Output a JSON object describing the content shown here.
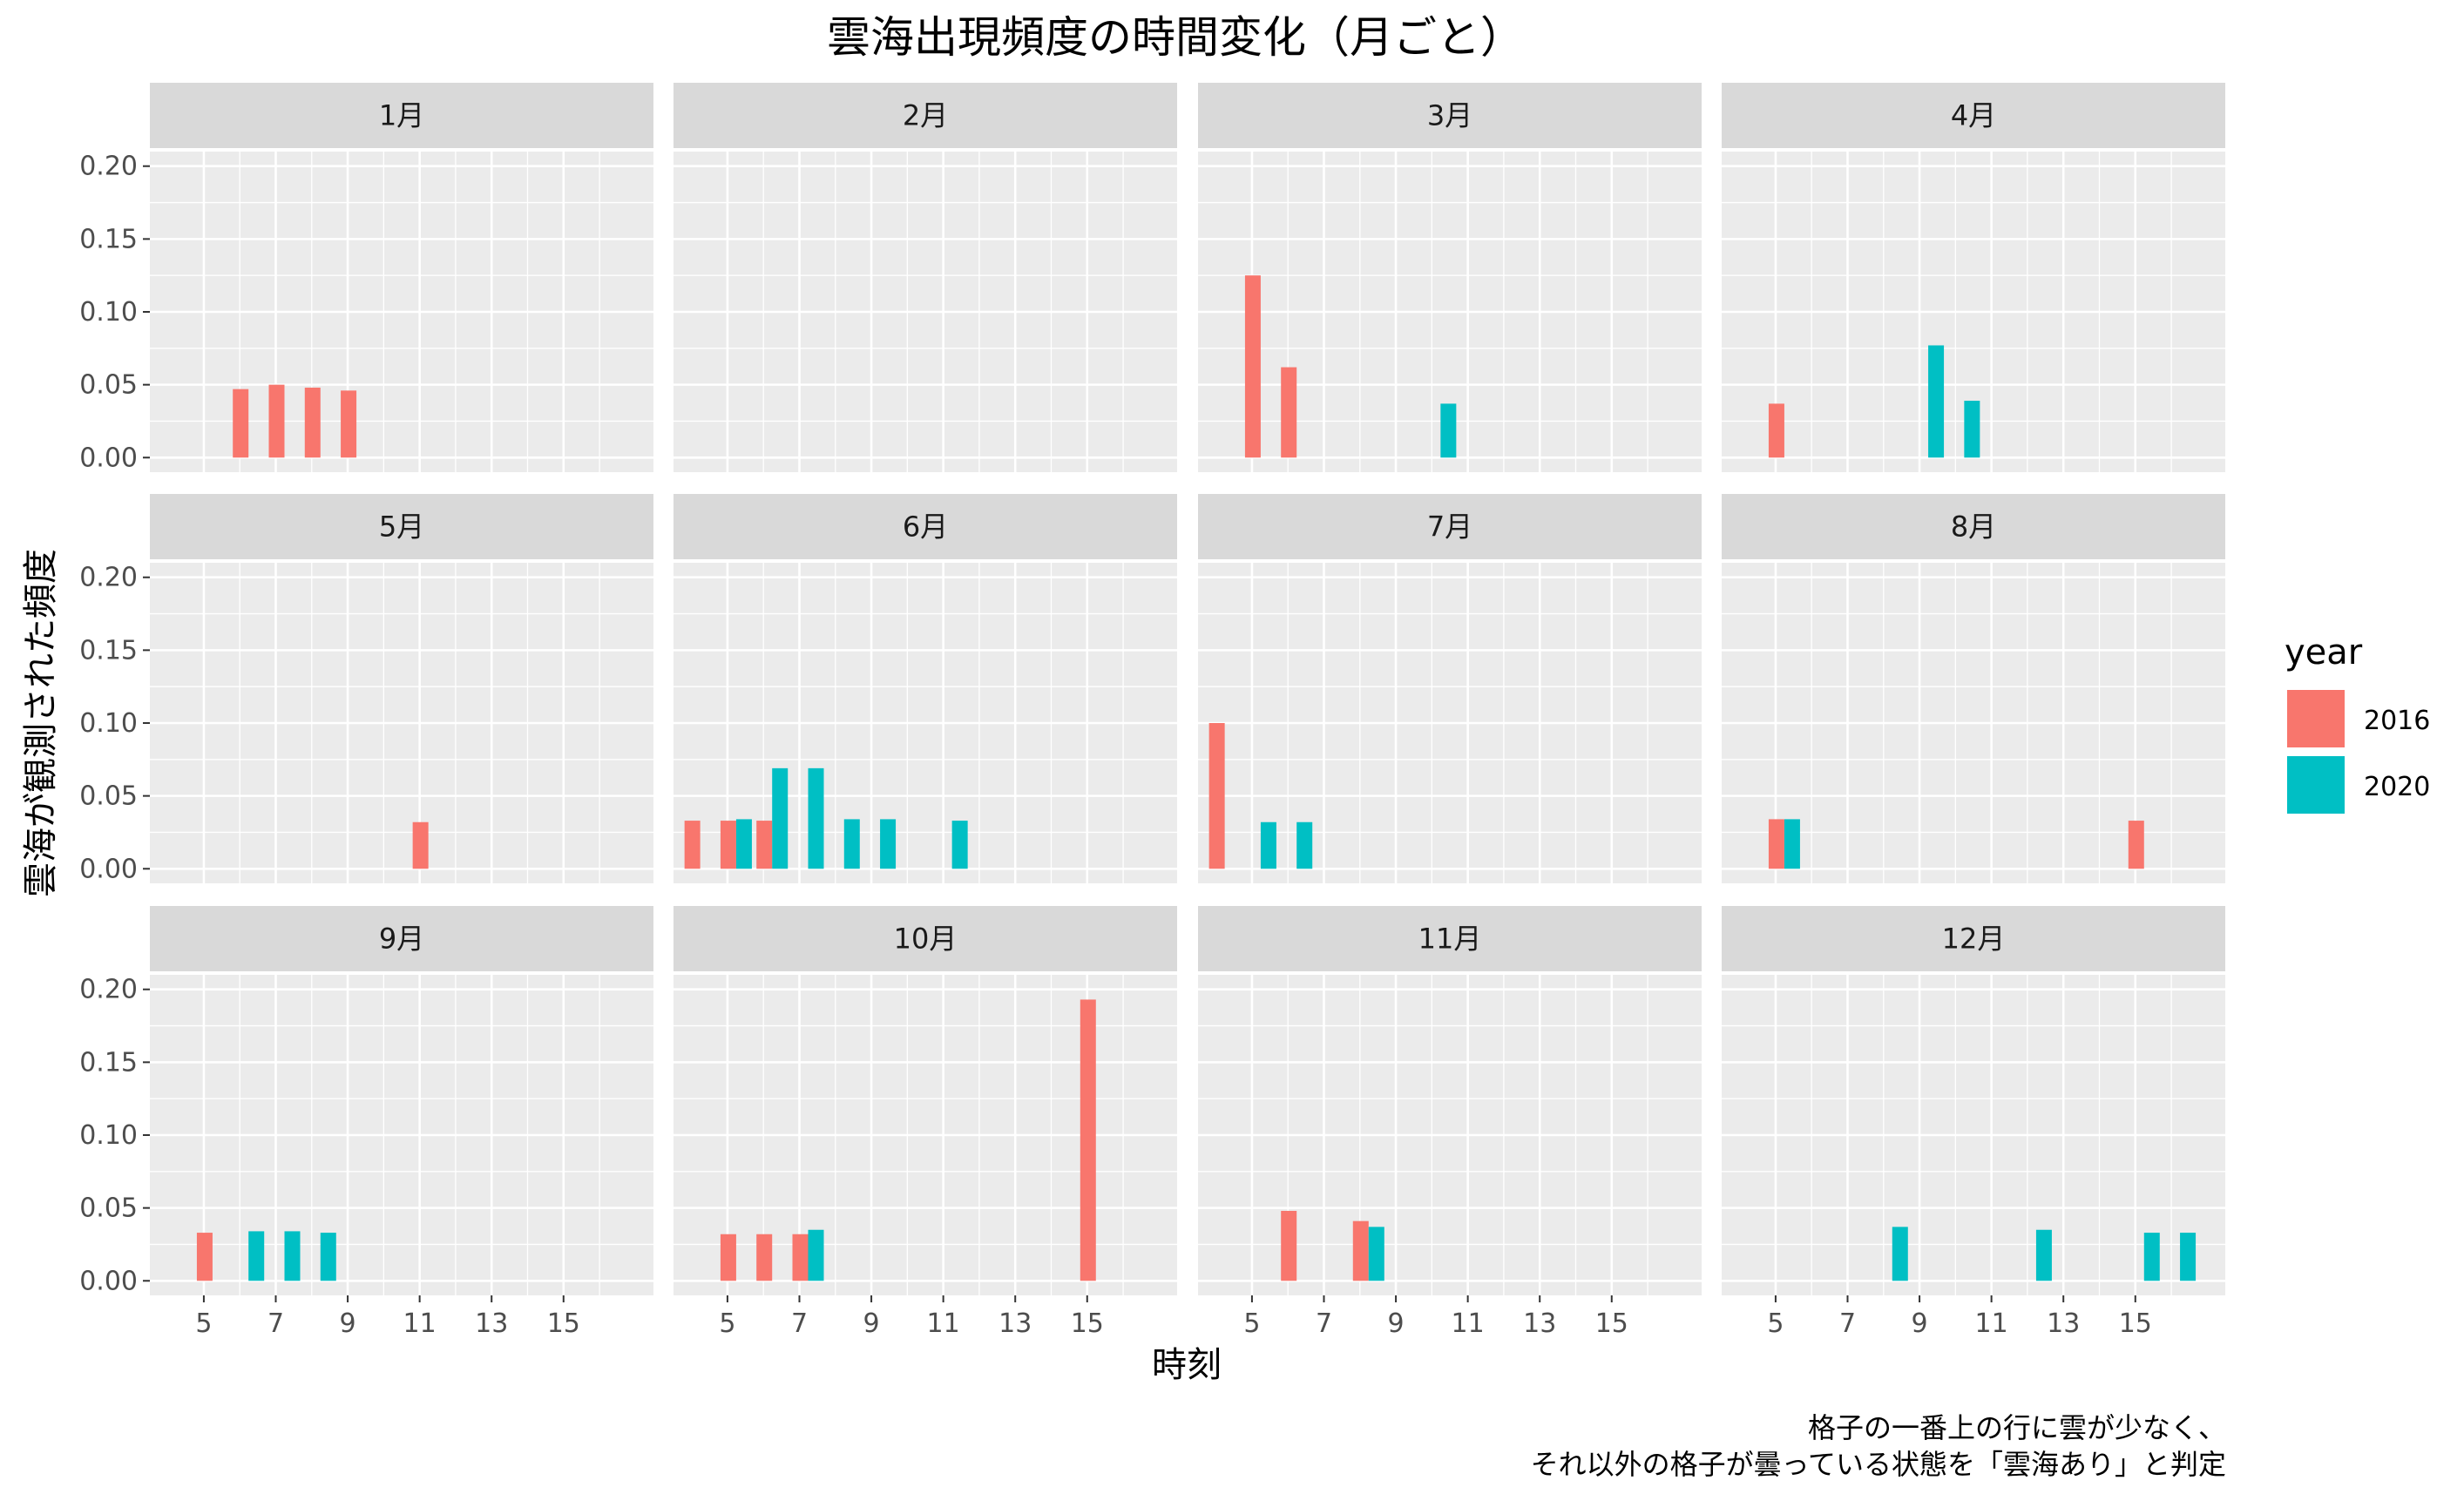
{
  "chart_data": {
    "type": "bar",
    "title": "雲海出現頻度の時間変化（月ごと）",
    "xlabel": "時刻",
    "ylabel": "雲海が観測された頻度",
    "caption": [
      "格子の一番上の行に雲が少なく、",
      "それ以外の格子が曇っている状態を「雲海あり」と判定"
    ],
    "legend": {
      "title": "year",
      "position": "right",
      "entries": [
        {
          "name": "2016",
          "color": "#F8766D"
        },
        {
          "name": "2020",
          "color": "#00BFC4"
        }
      ]
    },
    "xlim": [
      3.5,
      17.5
    ],
    "x_ticks": [
      5,
      7,
      9,
      11,
      13,
      15
    ],
    "ylim": [
      -0.01,
      0.21
    ],
    "y_ticks": [
      0.0,
      0.05,
      0.1,
      0.15,
      0.2
    ],
    "y_tick_labels": [
      "0.00",
      "0.05",
      "0.10",
      "0.15",
      "0.20"
    ],
    "grid": true,
    "facets": [
      {
        "label": "1月",
        "series": [
          {
            "name": "2016",
            "x": [
              6,
              7,
              8,
              9
            ],
            "values": [
              0.047,
              0.05,
              0.048,
              0.046
            ]
          },
          {
            "name": "2020",
            "x": [],
            "values": []
          }
        ]
      },
      {
        "label": "2月",
        "series": [
          {
            "name": "2016",
            "x": [],
            "values": []
          },
          {
            "name": "2020",
            "x": [],
            "values": []
          }
        ]
      },
      {
        "label": "3月",
        "series": [
          {
            "name": "2016",
            "x": [
              5,
              6
            ],
            "values": [
              0.125,
              0.062
            ]
          },
          {
            "name": "2020",
            "x": [
              10
            ],
            "values": [
              0.037
            ]
          }
        ]
      },
      {
        "label": "4月",
        "series": [
          {
            "name": "2016",
            "x": [
              5
            ],
            "values": [
              0.037
            ]
          },
          {
            "name": "2020",
            "x": [
              9,
              10
            ],
            "values": [
              0.077,
              0.039
            ]
          }
        ]
      },
      {
        "label": "5月",
        "series": [
          {
            "name": "2016",
            "x": [
              11
            ],
            "values": [
              0.032
            ]
          },
          {
            "name": "2020",
            "x": [],
            "values": []
          }
        ]
      },
      {
        "label": "6月",
        "series": [
          {
            "name": "2016",
            "x": [
              4,
              5,
              6
            ],
            "values": [
              0.033,
              0.033,
              0.033
            ]
          },
          {
            "name": "2020",
            "x": [
              5,
              6,
              7,
              8,
              9,
              11
            ],
            "values": [
              0.034,
              0.069,
              0.069,
              0.034,
              0.034,
              0.033
            ]
          }
        ]
      },
      {
        "label": "7月",
        "series": [
          {
            "name": "2016",
            "x": [
              4
            ],
            "values": [
              0.1
            ]
          },
          {
            "name": "2020",
            "x": [
              5,
              6
            ],
            "values": [
              0.032,
              0.032
            ]
          }
        ]
      },
      {
        "label": "8月",
        "series": [
          {
            "name": "2016",
            "x": [
              5,
              15
            ],
            "values": [
              0.034,
              0.033
            ]
          },
          {
            "name": "2020",
            "x": [
              5
            ],
            "values": [
              0.034
            ]
          }
        ]
      },
      {
        "label": "9月",
        "series": [
          {
            "name": "2016",
            "x": [
              5
            ],
            "values": [
              0.033
            ]
          },
          {
            "name": "2020",
            "x": [
              6,
              7,
              8
            ],
            "values": [
              0.034,
              0.034,
              0.033
            ]
          }
        ]
      },
      {
        "label": "10月",
        "series": [
          {
            "name": "2016",
            "x": [
              5,
              6,
              7,
              15
            ],
            "values": [
              0.032,
              0.032,
              0.032,
              0.193
            ]
          },
          {
            "name": "2020",
            "x": [
              7
            ],
            "values": [
              0.035
            ]
          }
        ]
      },
      {
        "label": "11月",
        "series": [
          {
            "name": "2016",
            "x": [
              6,
              8
            ],
            "values": [
              0.048,
              0.041
            ]
          },
          {
            "name": "2020",
            "x": [
              8
            ],
            "values": [
              0.037
            ]
          }
        ]
      },
      {
        "label": "12月",
        "series": [
          {
            "name": "2016",
            "x": [],
            "values": []
          },
          {
            "name": "2020",
            "x": [
              8,
              12,
              15,
              16
            ],
            "values": [
              0.037,
              0.035,
              0.033,
              0.033
            ]
          }
        ]
      }
    ]
  }
}
